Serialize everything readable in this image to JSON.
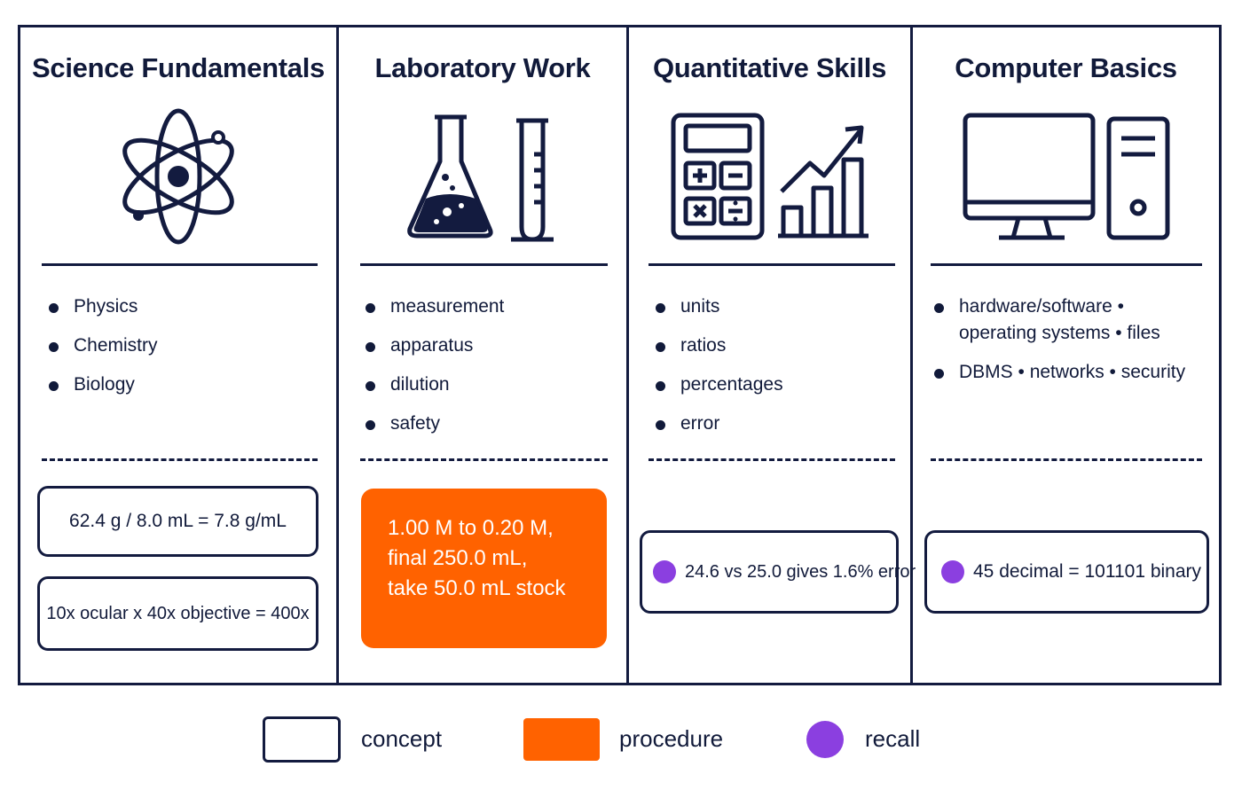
{
  "columns": [
    {
      "title": "Science Fundamentals",
      "icon": "atom-icon",
      "bullets": [
        "Physics",
        "Chemistry",
        "Biology"
      ],
      "cards": [
        {
          "type": "concept",
          "text": "62.4 g / 8.0 mL = 7.8 g/mL"
        },
        {
          "type": "concept",
          "text": "10x ocular x 40x objective = 400x"
        }
      ]
    },
    {
      "title": "Laboratory Work",
      "icon": "flask-and-test-tube-icon",
      "bullets": [
        "measurement",
        "apparatus",
        "dilution",
        "safety"
      ],
      "cards": [
        {
          "type": "procedure",
          "lines": [
            "1.00 M to 0.20 M,",
            "final 250.0 mL,",
            "take 50.0 mL stock"
          ]
        }
      ]
    },
    {
      "title": "Quantitative Skills",
      "icon": "calculator-and-bar-chart-icon",
      "bullets": [
        "units",
        "ratios",
        "percentages",
        "error"
      ],
      "cards": [
        {
          "type": "recall",
          "text": "24.6 vs 25.0 gives 1.6% error"
        }
      ]
    },
    {
      "title": "Computer Basics",
      "icon": "desktop-computer-icon",
      "bullets": [
        "hardware/software • operating systems • files",
        "DBMS • networks • security"
      ],
      "cards": [
        {
          "type": "recall",
          "text": "45 decimal = 101101 binary"
        }
      ]
    }
  ],
  "legend": [
    {
      "kind": "concept",
      "label": "concept"
    },
    {
      "kind": "procedure",
      "label": "procedure"
    },
    {
      "kind": "recall",
      "label": "recall"
    }
  ],
  "colors": {
    "ink": "#131b3f",
    "procedure": "#ff6200",
    "recall": "#8b3fe0"
  }
}
